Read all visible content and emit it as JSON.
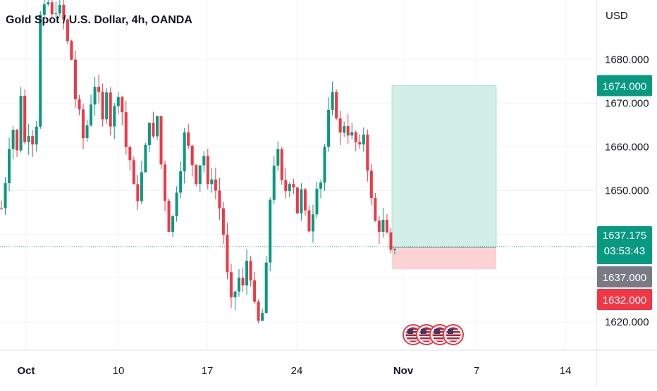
{
  "header": {
    "symbol_title": "Gold Spot / U.S. Dollar, 4h, OANDA",
    "currency": "USD"
  },
  "chart_data": {
    "type": "candlestick",
    "title": "Gold Spot / U.S. Dollar, 4h, OANDA",
    "y_axis": {
      "unit": "USD",
      "ticks": [
        "1620.000",
        "1630.000",
        "1640.000",
        "1650.000",
        "1660.000",
        "1670.000",
        "1680.000"
      ],
      "ylim": [
        1614,
        1691
      ]
    },
    "x_axis": {
      "tick_labels": [
        "Oct",
        "10",
        "17",
        "24",
        "Nov",
        "7",
        "14"
      ]
    },
    "grid": true,
    "price_labels": [
      {
        "value": "1674.000",
        "color": "#089981",
        "role": "take-profit"
      },
      {
        "value": "1637.175",
        "sub": "03:53:43",
        "color": "#089981",
        "role": "last-price"
      },
      {
        "value": "1637.000",
        "color": "#787b86",
        "role": "entry"
      },
      {
        "value": "1632.000",
        "color": "#f23645",
        "role": "stop-loss"
      }
    ],
    "position": {
      "side": "long",
      "entry": 1637.0,
      "take_profit": 1674.0,
      "stop_loss": 1632.0
    },
    "last_price": 1637.175,
    "countdown": "03:53:43",
    "event_markers": {
      "count": 4,
      "icon": "us-flag-icon"
    },
    "colors": {
      "up": "#089981",
      "down": "#f23645",
      "profit_zone": "#d1efe6",
      "loss_zone": "#fcd2d5"
    },
    "waypoints": [
      [
        0,
        1646
      ],
      [
        1,
        1652
      ],
      [
        2,
        1660
      ],
      [
        3,
        1664
      ],
      [
        4,
        1659
      ],
      [
        5,
        1672
      ],
      [
        6,
        1661
      ],
      [
        7,
        1663
      ],
      [
        8,
        1661
      ],
      [
        9,
        1665
      ],
      [
        10,
        1690
      ],
      [
        11,
        1692
      ],
      [
        12,
        1693
      ],
      [
        13,
        1690
      ],
      [
        14,
        1691
      ],
      [
        15,
        1692
      ],
      [
        16,
        1689
      ],
      [
        17,
        1684
      ],
      [
        18,
        1680
      ],
      [
        19,
        1671
      ],
      [
        20,
        1668
      ],
      [
        21,
        1662
      ],
      [
        22,
        1665
      ],
      [
        23,
        1670
      ],
      [
        24,
        1674
      ],
      [
        25,
        1672
      ],
      [
        26,
        1666
      ],
      [
        27,
        1673
      ],
      [
        28,
        1665
      ],
      [
        29,
        1669
      ],
      [
        30,
        1672
      ],
      [
        31,
        1668
      ],
      [
        32,
        1660
      ],
      [
        33,
        1657
      ],
      [
        34,
        1651
      ],
      [
        35,
        1648
      ],
      [
        36,
        1654
      ],
      [
        37,
        1660
      ],
      [
        38,
        1666
      ],
      [
        39,
        1662
      ],
      [
        40,
        1667
      ],
      [
        41,
        1656
      ],
      [
        42,
        1648
      ],
      [
        43,
        1641
      ],
      [
        44,
        1644
      ],
      [
        45,
        1650
      ],
      [
        46,
        1655
      ],
      [
        47,
        1663
      ],
      [
        48,
        1660
      ],
      [
        49,
        1656
      ],
      [
        50,
        1652
      ],
      [
        51,
        1656
      ],
      [
        52,
        1658
      ],
      [
        53,
        1651
      ],
      [
        54,
        1653
      ],
      [
        55,
        1650
      ],
      [
        56,
        1646
      ],
      [
        57,
        1640
      ],
      [
        58,
        1631
      ],
      [
        59,
        1625
      ],
      [
        60,
        1627
      ],
      [
        61,
        1630
      ],
      [
        62,
        1628
      ],
      [
        63,
        1634
      ],
      [
        64,
        1630
      ],
      [
        65,
        1624
      ],
      [
        66,
        1620
      ],
      [
        67,
        1622
      ],
      [
        68,
        1633
      ],
      [
        69,
        1648
      ],
      [
        70,
        1656
      ],
      [
        71,
        1659
      ],
      [
        72,
        1652
      ],
      [
        73,
        1650
      ],
      [
        74,
        1652
      ],
      [
        75,
        1651
      ],
      [
        76,
        1645
      ],
      [
        77,
        1650
      ],
      [
        78,
        1645
      ],
      [
        79,
        1641
      ],
      [
        80,
        1645
      ],
      [
        81,
        1651
      ],
      [
        82,
        1652
      ],
      [
        83,
        1660
      ],
      [
        84,
        1668
      ],
      [
        85,
        1672
      ],
      [
        86,
        1667
      ],
      [
        87,
        1663
      ],
      [
        88,
        1665
      ],
      [
        89,
        1663
      ],
      [
        90,
        1663
      ],
      [
        91,
        1661
      ],
      [
        92,
        1660
      ],
      [
        93,
        1663
      ],
      [
        94,
        1655
      ],
      [
        95,
        1648
      ],
      [
        96,
        1643
      ],
      [
        97,
        1641
      ],
      [
        98,
        1643
      ],
      [
        99,
        1640
      ],
      [
        100,
        1636
      ],
      [
        101,
        1637
      ]
    ]
  }
}
